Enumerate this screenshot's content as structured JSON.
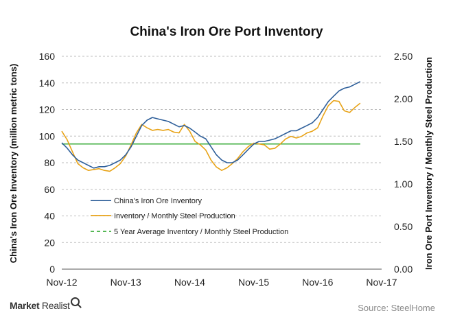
{
  "chart_data": {
    "type": "line",
    "title": "China's Iron Ore Port Inventory",
    "ylabel": "China's Iron Ore Inventory (million metric tons)",
    "y2label": "Iron Ore Port Inventory / Monthly Steel Production",
    "x_ticks": [
      "Nov-12",
      "Nov-13",
      "Nov-14",
      "Nov-15",
      "Nov-16",
      "Nov-17"
    ],
    "x_range": [
      "2012-11",
      "2017-11"
    ],
    "ylim": [
      0,
      160
    ],
    "y_ticks": [
      "0",
      "20",
      "40",
      "60",
      "80",
      "100",
      "120",
      "140",
      "160"
    ],
    "y2lim": [
      0,
      2.5
    ],
    "y2_ticks": [
      "0.00",
      "0.50",
      "1.00",
      "1.50",
      "2.00",
      "2.50"
    ],
    "grid": "horizontal dashed",
    "legend_position": "lower-left",
    "series": [
      {
        "name": "China's Iron Ore Inventory",
        "axis": "left",
        "color": "#2e5f9a",
        "style": "solid",
        "points": [
          [
            "2012-11",
            95
          ],
          [
            "2012-12",
            91
          ],
          [
            "2013-01",
            86
          ],
          [
            "2013-02",
            82
          ],
          [
            "2013-03",
            80
          ],
          [
            "2013-04",
            78
          ],
          [
            "2013-05",
            76
          ],
          [
            "2013-06",
            77
          ],
          [
            "2013-07",
            77
          ],
          [
            "2013-08",
            78
          ],
          [
            "2013-09",
            80
          ],
          [
            "2013-10",
            82
          ],
          [
            "2013-11",
            86
          ],
          [
            "2013-12",
            92
          ],
          [
            "2014-01",
            100
          ],
          [
            "2014-02",
            108
          ],
          [
            "2014-03",
            112
          ],
          [
            "2014-04",
            114
          ],
          [
            "2014-05",
            113
          ],
          [
            "2014-06",
            112
          ],
          [
            "2014-07",
            111
          ],
          [
            "2014-08",
            109
          ],
          [
            "2014-09",
            107
          ],
          [
            "2014-10",
            108
          ],
          [
            "2014-11",
            106
          ],
          [
            "2014-12",
            103
          ],
          [
            "2015-01",
            100
          ],
          [
            "2015-02",
            98
          ],
          [
            "2015-03",
            92
          ],
          [
            "2015-04",
            86
          ],
          [
            "2015-05",
            82
          ],
          [
            "2015-06",
            80
          ],
          [
            "2015-07",
            80
          ],
          [
            "2015-08",
            82
          ],
          [
            "2015-09",
            86
          ],
          [
            "2015-10",
            90
          ],
          [
            "2015-11",
            94
          ],
          [
            "2015-12",
            96
          ],
          [
            "2016-01",
            96
          ],
          [
            "2016-02",
            97
          ],
          [
            "2016-03",
            98
          ],
          [
            "2016-04",
            100
          ],
          [
            "2016-05",
            102
          ],
          [
            "2016-06",
            104
          ],
          [
            "2016-07",
            104
          ],
          [
            "2016-08",
            106
          ],
          [
            "2016-09",
            108
          ],
          [
            "2016-10",
            110
          ],
          [
            "2016-11",
            114
          ],
          [
            "2016-12",
            120
          ],
          [
            "2017-01",
            126
          ],
          [
            "2017-02",
            130
          ],
          [
            "2017-03",
            134
          ],
          [
            "2017-04",
            136
          ],
          [
            "2017-05",
            137
          ],
          [
            "2017-06",
            139
          ],
          [
            "2017-07",
            141
          ]
        ]
      },
      {
        "name": "Inventory / Monthly Steel Production",
        "axis": "right",
        "color": "#e8a317",
        "style": "solid",
        "points": [
          [
            "2012-11",
            1.62
          ],
          [
            "2012-12",
            1.52
          ],
          [
            "2013-01",
            1.38
          ],
          [
            "2013-02",
            1.24
          ],
          [
            "2013-03",
            1.19
          ],
          [
            "2013-04",
            1.16
          ],
          [
            "2013-05",
            1.17
          ],
          [
            "2013-06",
            1.18
          ],
          [
            "2013-07",
            1.16
          ],
          [
            "2013-08",
            1.15
          ],
          [
            "2013-09",
            1.19
          ],
          [
            "2013-10",
            1.24
          ],
          [
            "2013-11",
            1.33
          ],
          [
            "2013-12",
            1.46
          ],
          [
            "2014-01",
            1.6
          ],
          [
            "2014-02",
            1.7
          ],
          [
            "2014-03",
            1.66
          ],
          [
            "2014-04",
            1.63
          ],
          [
            "2014-05",
            1.64
          ],
          [
            "2014-06",
            1.63
          ],
          [
            "2014-07",
            1.64
          ],
          [
            "2014-08",
            1.61
          ],
          [
            "2014-09",
            1.6
          ],
          [
            "2014-10",
            1.7
          ],
          [
            "2014-11",
            1.62
          ],
          [
            "2014-12",
            1.5
          ],
          [
            "2015-01",
            1.46
          ],
          [
            "2015-02",
            1.4
          ],
          [
            "2015-03",
            1.28
          ],
          [
            "2015-04",
            1.2
          ],
          [
            "2015-05",
            1.16
          ],
          [
            "2015-06",
            1.19
          ],
          [
            "2015-07",
            1.24
          ],
          [
            "2015-08",
            1.3
          ],
          [
            "2015-09",
            1.38
          ],
          [
            "2015-10",
            1.44
          ],
          [
            "2015-11",
            1.48
          ],
          [
            "2015-12",
            1.47
          ],
          [
            "2016-01",
            1.46
          ],
          [
            "2016-02",
            1.41
          ],
          [
            "2016-03",
            1.42
          ],
          [
            "2016-04",
            1.47
          ],
          [
            "2016-05",
            1.53
          ],
          [
            "2016-06",
            1.56
          ],
          [
            "2016-07",
            1.54
          ],
          [
            "2016-08",
            1.56
          ],
          [
            "2016-09",
            1.6
          ],
          [
            "2016-10",
            1.62
          ],
          [
            "2016-11",
            1.66
          ],
          [
            "2016-12",
            1.8
          ],
          [
            "2017-01",
            1.92
          ],
          [
            "2017-02",
            1.98
          ],
          [
            "2017-03",
            1.97
          ],
          [
            "2017-04",
            1.86
          ],
          [
            "2017-05",
            1.84
          ],
          [
            "2017-06",
            1.9
          ],
          [
            "2017-07",
            1.95
          ]
        ]
      },
      {
        "name": "5 Year Average Inventory / Monthly Steel Production",
        "axis": "right",
        "color": "#3fae3f",
        "style": "dashed",
        "points": [
          [
            "2012-11",
            1.47
          ],
          [
            "2017-07",
            1.47
          ]
        ]
      }
    ]
  },
  "footer": {
    "brand_part1": "Market",
    "brand_part2": " Realist",
    "source": "Source: SteelHome"
  }
}
